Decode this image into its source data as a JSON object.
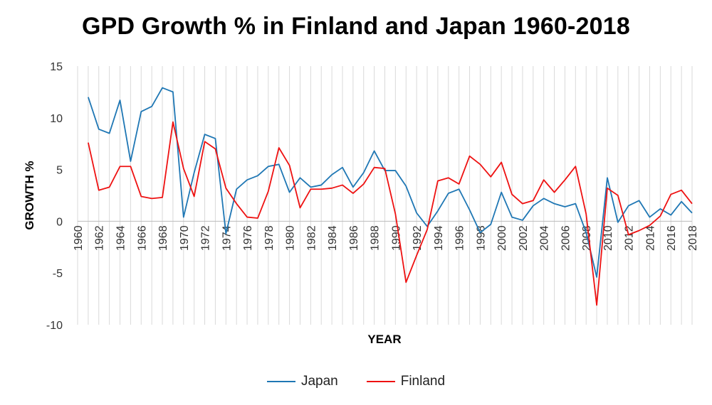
{
  "chart_data": {
    "type": "line",
    "title": "GPD Growth % in Finland and Japan 1960-2018",
    "xlabel": "YEAR",
    "ylabel": "GROWTH %",
    "ylim": [
      -10,
      15
    ],
    "yticks": [
      15,
      10,
      5,
      0,
      -5,
      -10
    ],
    "xlim": [
      1960,
      2018
    ],
    "xtick_labels": [
      "1960",
      "1962",
      "1964",
      "1966",
      "1968",
      "1970",
      "1972",
      "1974",
      "1976",
      "1978",
      "1980",
      "1982",
      "1984",
      "1986",
      "1988",
      "1990",
      "1992",
      "1994",
      "1996",
      "1998",
      "2000",
      "2002",
      "2004",
      "2006",
      "2008",
      "2010",
      "2012",
      "2014",
      "2016",
      "2018"
    ],
    "grid": "vertical",
    "legend_position": "bottom",
    "series": [
      {
        "name": "Japan",
        "color": "#1f77b4",
        "x": [
          1961,
          1962,
          1963,
          1964,
          1965,
          1966,
          1967,
          1968,
          1969,
          1970,
          1971,
          1972,
          1973,
          1974,
          1975,
          1976,
          1977,
          1978,
          1979,
          1980,
          1981,
          1982,
          1983,
          1984,
          1985,
          1986,
          1987,
          1988,
          1989,
          1990,
          1991,
          1992,
          1993,
          1994,
          1995,
          1996,
          1997,
          1998,
          1999,
          2000,
          2001,
          2002,
          2003,
          2004,
          2005,
          2006,
          2007,
          2008,
          2009,
          2010,
          2011,
          2012,
          2013,
          2014,
          2015,
          2016,
          2017,
          2018
        ],
        "values": [
          12.0,
          8.9,
          8.5,
          11.7,
          5.8,
          10.6,
          11.1,
          12.9,
          12.5,
          0.4,
          4.7,
          8.4,
          8.0,
          -1.2,
          3.1,
          4.0,
          4.4,
          5.3,
          5.5,
          2.8,
          4.2,
          3.3,
          3.5,
          4.5,
          5.2,
          3.3,
          4.7,
          6.8,
          4.9,
          4.9,
          3.4,
          0.8,
          -0.5,
          1.0,
          2.7,
          3.1,
          1.1,
          -1.1,
          -0.3,
          2.8,
          0.4,
          0.1,
          1.5,
          2.2,
          1.7,
          1.4,
          1.7,
          -1.1,
          -5.4,
          4.2,
          -0.1,
          1.5,
          2.0,
          0.4,
          1.2,
          0.6,
          1.9,
          0.8
        ]
      },
      {
        "name": "Finland",
        "color": "#ee1111",
        "x": [
          1961,
          1962,
          1963,
          1964,
          1965,
          1966,
          1967,
          1968,
          1969,
          1970,
          1971,
          1972,
          1973,
          1974,
          1975,
          1976,
          1977,
          1978,
          1979,
          1980,
          1981,
          1982,
          1983,
          1984,
          1985,
          1986,
          1987,
          1988,
          1989,
          1990,
          1991,
          1992,
          1993,
          1994,
          1995,
          1996,
          1997,
          1998,
          1999,
          2000,
          2001,
          2002,
          2003,
          2004,
          2005,
          2006,
          2007,
          2008,
          2009,
          2010,
          2011,
          2012,
          2013,
          2014,
          2015,
          2016,
          2017,
          2018
        ],
        "values": [
          7.6,
          3.0,
          3.3,
          5.3,
          5.3,
          2.4,
          2.2,
          2.3,
          9.6,
          5.1,
          2.4,
          7.7,
          7.0,
          3.2,
          1.7,
          0.4,
          0.3,
          2.9,
          7.1,
          5.4,
          1.3,
          3.1,
          3.1,
          3.2,
          3.5,
          2.7,
          3.6,
          5.2,
          5.1,
          0.7,
          -5.9,
          -3.3,
          -0.8,
          3.9,
          4.2,
          3.6,
          6.3,
          5.5,
          4.3,
          5.7,
          2.6,
          1.7,
          2.0,
          4.0,
          2.8,
          4.0,
          5.3,
          0.7,
          -8.1,
          3.2,
          2.5,
          -1.3,
          -0.9,
          -0.4,
          0.5,
          2.6,
          3.0,
          1.7
        ]
      }
    ]
  }
}
